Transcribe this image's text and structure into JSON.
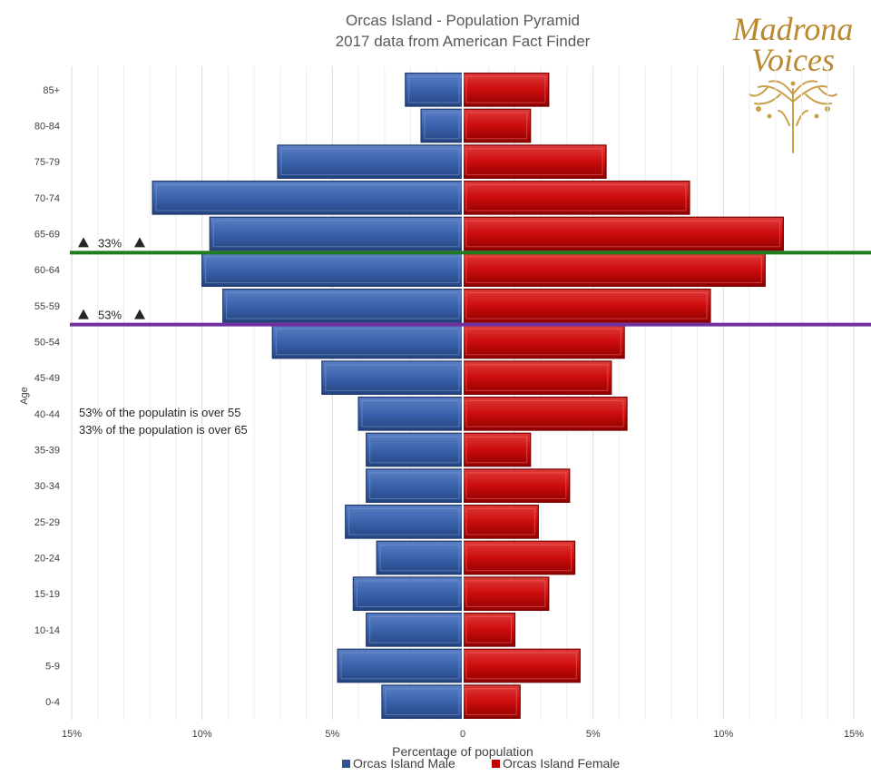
{
  "chart_data": {
    "type": "bar",
    "orientation": "horizontal-population-pyramid",
    "title": "Orcas Island - Population Pyramid",
    "subtitle": "2017 data from American Fact Finder",
    "xlabel": "Percentage of population",
    "ylabel": "Age",
    "xlim": [
      -15,
      15
    ],
    "x_ticks": [
      "15%",
      "10%",
      "5%",
      "0",
      "5%",
      "10%",
      "15%"
    ],
    "grid": true,
    "legend_position": "bottom",
    "categories": [
      "0-4",
      "5-9",
      "10-14",
      "15-19",
      "20-24",
      "25-29",
      "30-34",
      "35-39",
      "40-44",
      "45-49",
      "50-54",
      "55-59",
      "60-64",
      "65-69",
      "70-74",
      "75-79",
      "80-84",
      "85+"
    ],
    "series": [
      {
        "name": "Orcas Island Male",
        "color": "#2f5597",
        "values": [
          3.1,
          4.8,
          3.7,
          4.2,
          3.3,
          4.5,
          3.7,
          3.7,
          4.0,
          5.4,
          7.3,
          9.2,
          10.0,
          9.7,
          11.9,
          7.1,
          1.6,
          2.2
        ]
      },
      {
        "name": "Orcas Island Female",
        "color": "#c00000",
        "values": [
          2.2,
          4.5,
          2.0,
          3.3,
          4.3,
          2.9,
          4.1,
          2.6,
          6.3,
          5.7,
          6.2,
          9.5,
          11.6,
          12.3,
          8.7,
          5.5,
          2.6,
          3.3
        ]
      }
    ],
    "reference_lines": [
      {
        "label": "33%",
        "color": "#1e7b1e",
        "between": [
          "60-64",
          "65-69"
        ]
      },
      {
        "label": "53%",
        "color": "#7030a0",
        "between": [
          "50-54",
          "55-59"
        ]
      }
    ],
    "annotations": [
      "53% of the populatin is over 55",
      "33% of the population is over 65"
    ]
  },
  "logo": {
    "line1": "Madrona",
    "line2": "Voices",
    "icon": "madrona-tree-icon",
    "color": "#b8892e"
  }
}
